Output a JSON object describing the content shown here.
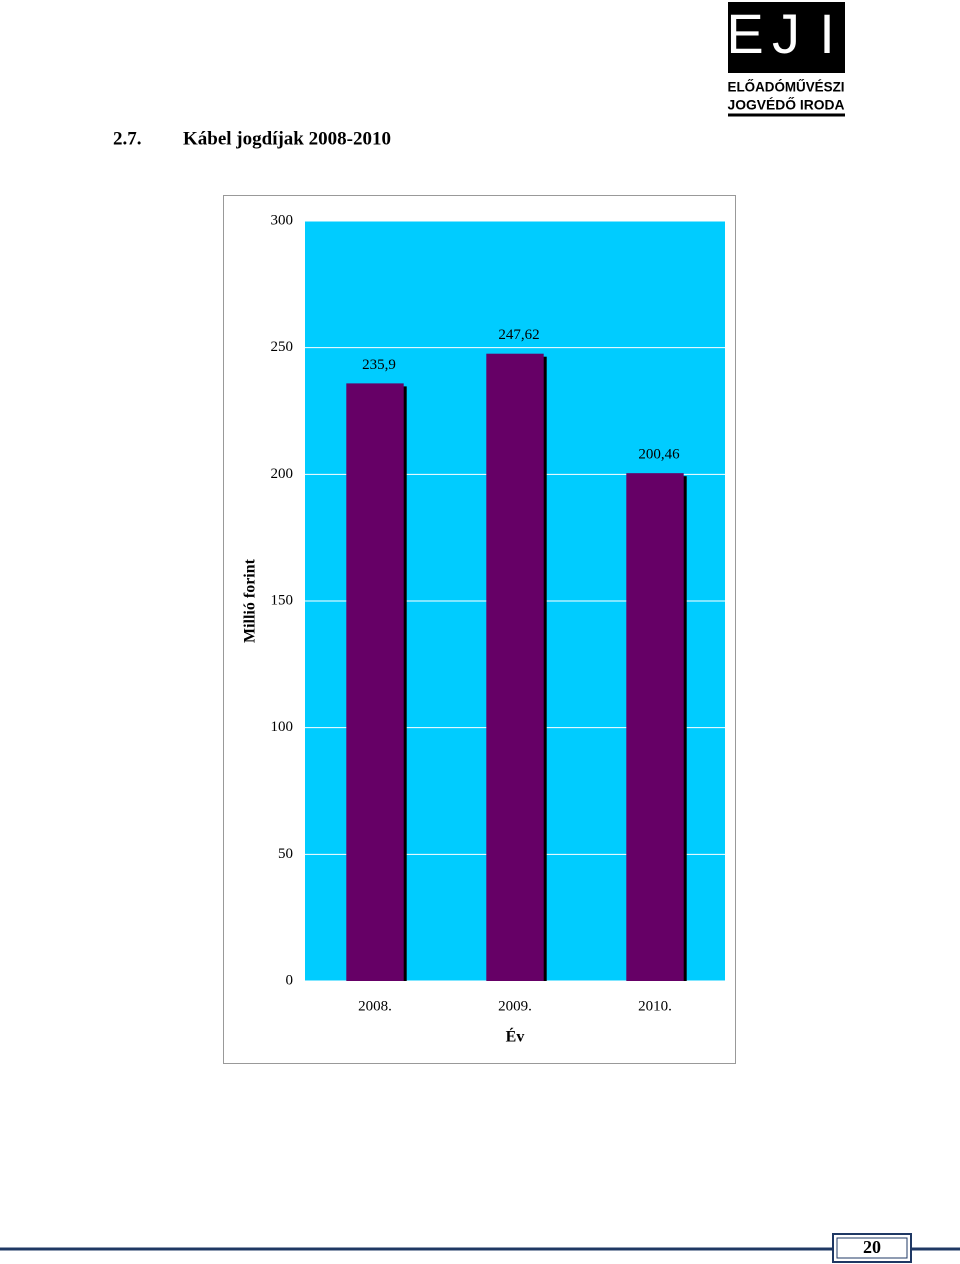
{
  "header": {
    "logo": {
      "letters": [
        "E",
        "J",
        "I"
      ],
      "line1": "ELŐADÓMŰVÉSZI",
      "line2": "JOGVÉDŐ IRODA"
    },
    "section_number": "2.7.",
    "section_title": "Kábel jogdíjak 2008-2010"
  },
  "chart_data": {
    "type": "bar",
    "categories": [
      "2008.",
      "2009.",
      "2010."
    ],
    "values": [
      235.9,
      247.62,
      200.46
    ],
    "value_labels": [
      "235,9",
      "247,62",
      "200,46"
    ],
    "color": "#660066",
    "background": "#00ccff",
    "grid": true,
    "ylim": [
      0,
      300
    ],
    "yticks": [
      0,
      50,
      100,
      150,
      200,
      250,
      300
    ],
    "ylabel": "Millió forint",
    "xlabel": "Év"
  },
  "footer": {
    "page_number": "20"
  }
}
